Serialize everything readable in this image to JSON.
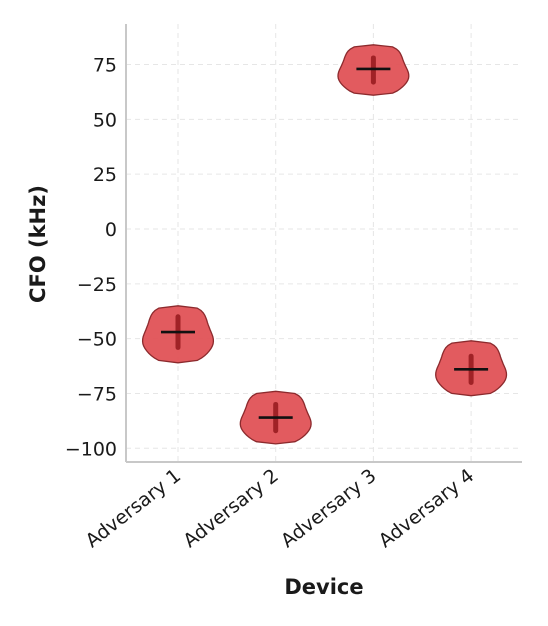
{
  "chart_data": {
    "type": "violin",
    "xlabel": "Device",
    "ylabel": "CFO (kHz)",
    "categories": [
      "Adversary 1",
      "Adversary 2",
      "Adversary 3",
      "Adversary 4"
    ],
    "ylim": [
      -106,
      93
    ],
    "yticks": [
      75,
      50,
      25,
      0,
      -25,
      -50,
      -75,
      -100
    ],
    "ytick_labels": [
      "75",
      "50",
      "25",
      "0",
      "−25",
      "−50",
      "−75",
      "−100"
    ],
    "grid": true,
    "violins": [
      {
        "category": "Adversary 1",
        "min": -61,
        "max": -35,
        "median": -47,
        "q1": -54,
        "q3": -40
      },
      {
        "category": "Adversary 2",
        "min": -98,
        "max": -74,
        "median": -86,
        "q1": -92,
        "q3": -80
      },
      {
        "category": "Adversary 3",
        "min": 61,
        "max": 84,
        "median": 73,
        "q1": 67,
        "q3": 78
      },
      {
        "category": "Adversary 4",
        "min": -76,
        "max": -51,
        "median": -64,
        "q1": -70,
        "q3": -58
      }
    ],
    "colors": {
      "fill": "#e05256",
      "edge": "#8c2a2d",
      "quartile": "#a02226",
      "median": "#111111"
    }
  }
}
